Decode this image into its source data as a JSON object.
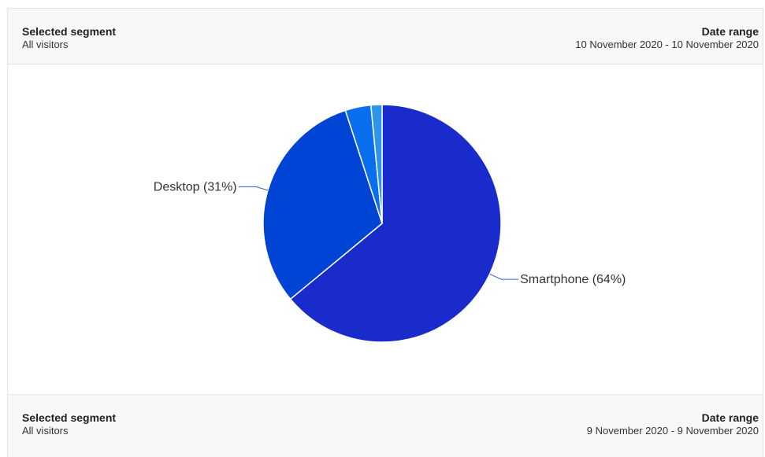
{
  "sections": [
    {
      "segment_label": "Selected segment",
      "segment_value": "All visitors",
      "date_label": "Date range",
      "date_value": "10 November 2020 - 10 November 2020"
    },
    {
      "segment_label": "Selected segment",
      "segment_value": "All visitors",
      "date_label": "Date range",
      "date_value": "9 November 2020 - 9 November 2020"
    }
  ],
  "chart_data": {
    "type": "pie",
    "title": "",
    "slices": [
      {
        "name": "Smartphone",
        "value": 64,
        "label": "Smartphone (64%)",
        "color": "#1a2bcb"
      },
      {
        "name": "Desktop",
        "value": 31,
        "label": "Desktop (31%)",
        "color": "#0044d6"
      },
      {
        "name": "",
        "value": 3.5,
        "label": "",
        "color": "#0a6fef"
      },
      {
        "name": "",
        "value": 1.5,
        "label": "",
        "color": "#2e94e6"
      }
    ],
    "start_angle_deg": 0,
    "direction": "clockwise",
    "label_line_color": "#3b5bd6"
  }
}
